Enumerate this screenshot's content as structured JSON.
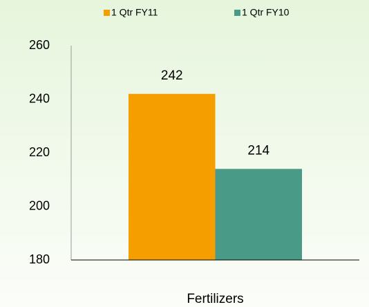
{
  "chart_data": {
    "type": "bar",
    "categories": [
      "Fertilizers"
    ],
    "series": [
      {
        "name": "1 Qtr FY11",
        "color": "#f59e00",
        "values": [
          242
        ]
      },
      {
        "name": "1 Qtr FY10",
        "color": "#4a9a88",
        "values": [
          214
        ]
      }
    ],
    "ylim": [
      180,
      260
    ],
    "yticks": [
      180,
      200,
      220,
      240,
      260
    ],
    "grid": false,
    "legend": "top"
  }
}
